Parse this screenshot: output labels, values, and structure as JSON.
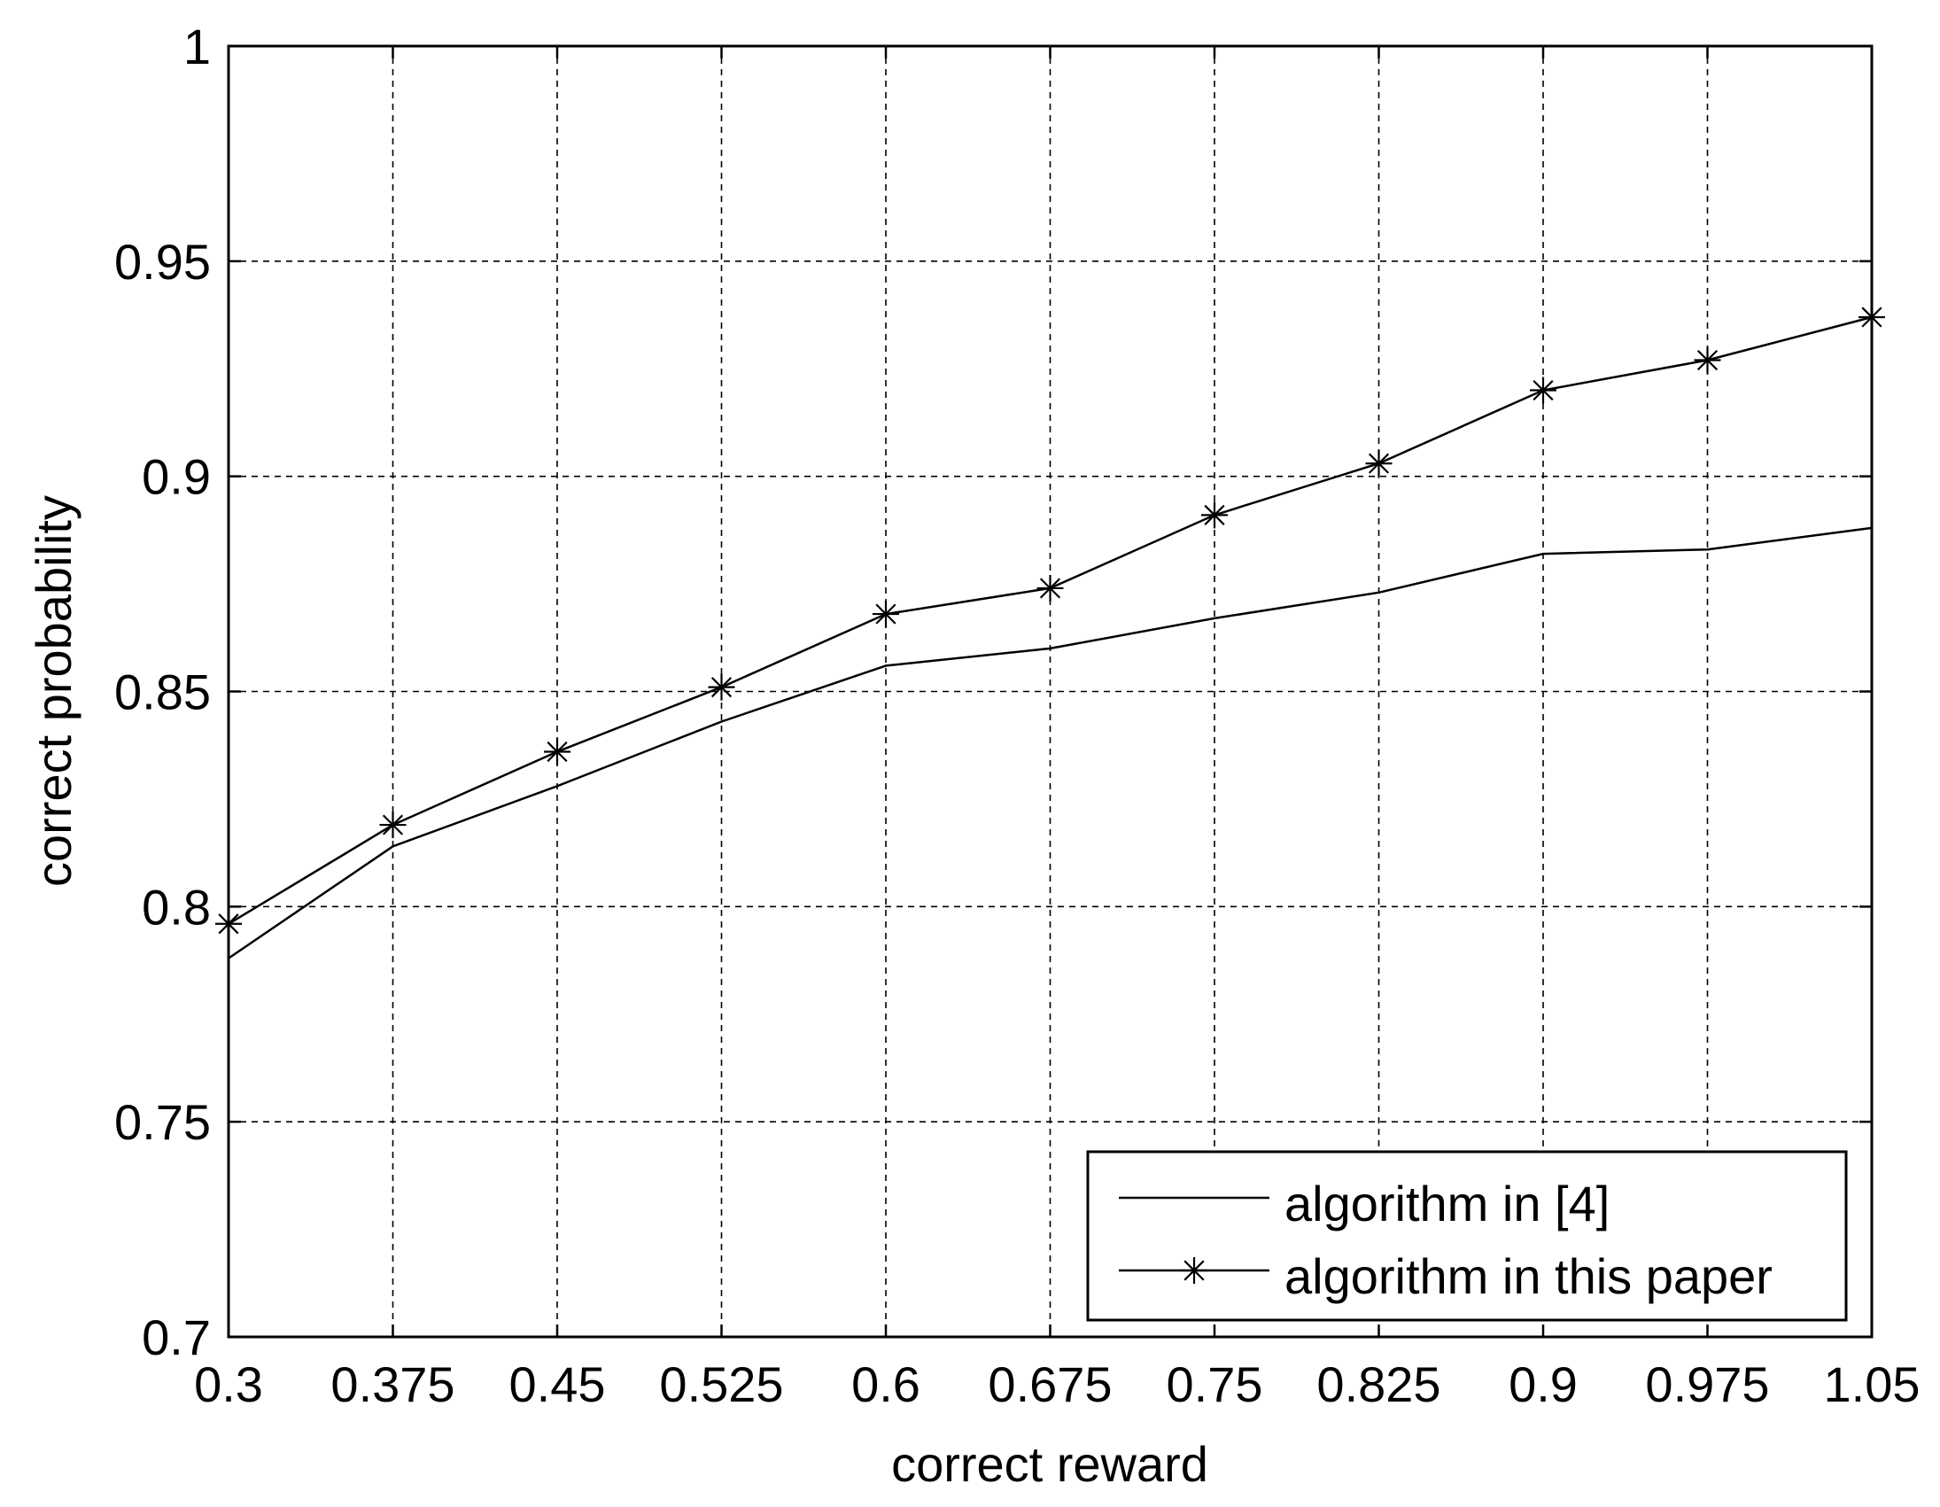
{
  "chart_data": {
    "type": "line",
    "title": "",
    "xlabel": "correct reward",
    "ylabel": "correct probability",
    "x": [
      0.3,
      0.375,
      0.45,
      0.525,
      0.6,
      0.675,
      0.75,
      0.825,
      0.9,
      0.975,
      1.05
    ],
    "x_tick_labels": [
      "0.3",
      "0.375",
      "0.45",
      "0.525",
      "0.6",
      "0.675",
      "0.75",
      "0.825",
      "0.9",
      "0.975",
      "1.05"
    ],
    "y_ticks": [
      0.7,
      0.75,
      0.8,
      0.85,
      0.9,
      0.95,
      1
    ],
    "y_tick_labels": [
      "0.7",
      "0.75",
      "0.8",
      "0.85",
      "0.9",
      "0.95",
      "1"
    ],
    "xlim": [
      0.3,
      1.05
    ],
    "ylim": [
      0.7,
      1.0
    ],
    "grid": true,
    "legend_position": "bottom-right",
    "series": [
      {
        "name": "algorithm in [4]",
        "marker": "none",
        "values": [
          0.788,
          0.814,
          0.828,
          0.843,
          0.856,
          0.86,
          0.867,
          0.873,
          0.882,
          0.883,
          0.888
        ]
      },
      {
        "name": "algorithm in this paper",
        "marker": "asterisk",
        "values": [
          0.796,
          0.819,
          0.836,
          0.851,
          0.868,
          0.874,
          0.891,
          0.903,
          0.92,
          0.927,
          0.937
        ]
      }
    ],
    "colors": {
      "line": "#000000",
      "grid": "#000000",
      "background": "#ffffff"
    }
  }
}
